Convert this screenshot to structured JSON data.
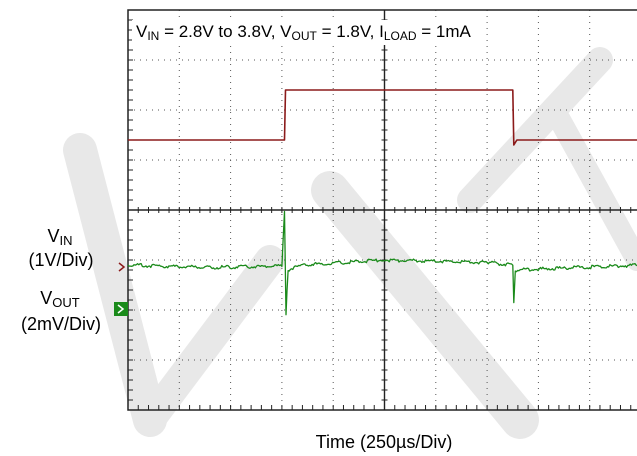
{
  "chart_data": {
    "type": "line",
    "annotation": {
      "segments": [
        {
          "text": "V",
          "sub": "IN"
        },
        {
          "text": " = 2.8V to 3.8V, "
        },
        {
          "text": "V",
          "sub": "OUT"
        },
        {
          "text": " = 1.8V, "
        },
        {
          "text": "I",
          "sub": "LOAD"
        },
        {
          "text": " = 1mA"
        }
      ]
    },
    "xlabel": "Time  (250µs/Div)",
    "x_units": "divisions",
    "xlim": [
      0,
      10
    ],
    "ylim": [
      -4,
      4
    ],
    "grid": true,
    "channel_labels": [
      {
        "name_main": "V",
        "name_sub": "IN",
        "scale": "(1V/Div)"
      },
      {
        "name_main": "V",
        "name_sub": "OUT",
        "scale": "(2mV/Div)"
      }
    ],
    "series": [
      {
        "key": "vin",
        "color": "#8b1a1a",
        "points": [
          [
            0,
            1.4
          ],
          [
            3.05,
            1.4
          ],
          [
            3.07,
            2.4
          ],
          [
            7.5,
            2.4
          ],
          [
            7.52,
            1.3
          ],
          [
            7.58,
            1.4
          ],
          [
            10,
            1.4
          ]
        ]
      },
      {
        "key": "vout",
        "color": "#1a8a1a",
        "noise": 0.035,
        "points": [
          [
            0,
            -1.1
          ],
          [
            1.5,
            -1.15
          ],
          [
            3.0,
            -1.12
          ],
          [
            3.05,
            0.0
          ],
          [
            3.08,
            -2.1
          ],
          [
            3.12,
            -1.2
          ],
          [
            3.4,
            -1.1
          ],
          [
            5.0,
            -1.0
          ],
          [
            7.0,
            -1.05
          ],
          [
            7.5,
            -1.1
          ],
          [
            7.52,
            -1.85
          ],
          [
            7.55,
            -1.2
          ],
          [
            10,
            -1.1
          ]
        ]
      }
    ]
  }
}
